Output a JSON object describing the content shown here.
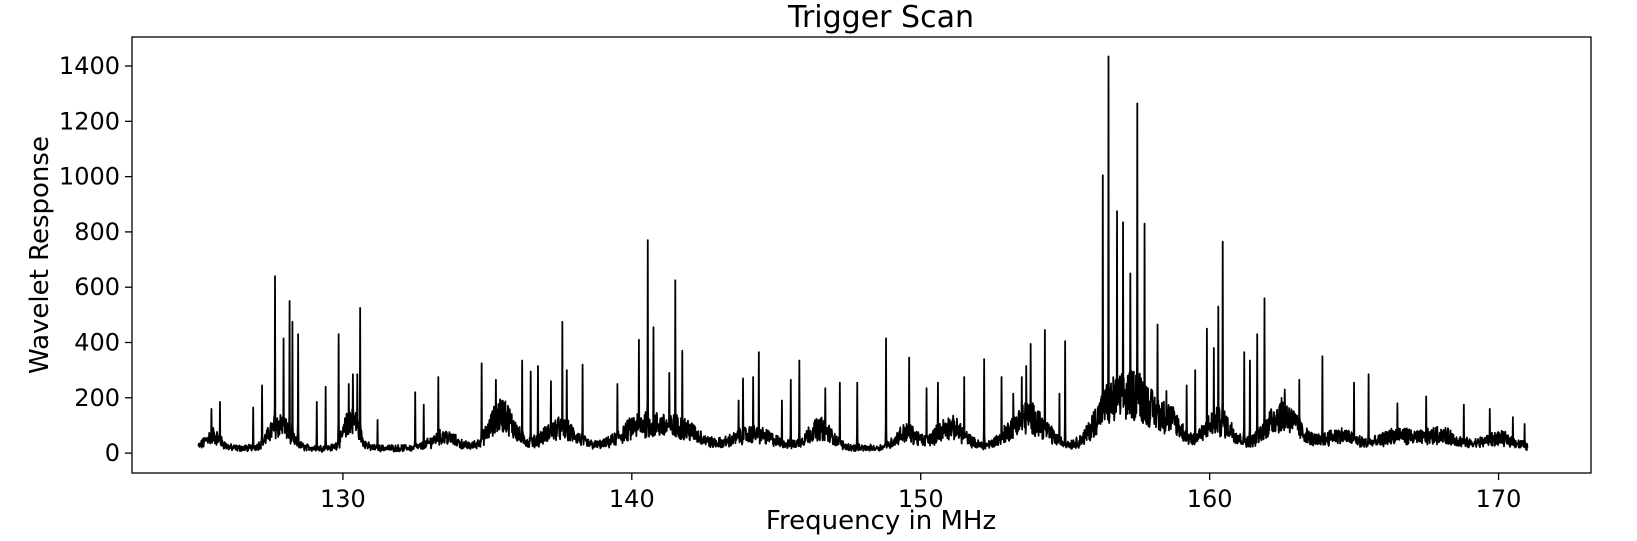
{
  "chart_data": {
    "type": "line",
    "title": "Trigger Scan",
    "xlabel": "Frequency in MHz",
    "ylabel": "Wavelet Response",
    "xlim": [
      122.7,
      173.2
    ],
    "ylim": [
      -72,
      1505
    ],
    "x_ticks": [
      130,
      140,
      150,
      160,
      170
    ],
    "y_ticks": [
      0,
      200,
      400,
      600,
      800,
      1000,
      1200,
      1400
    ],
    "x_tick_labels": [
      "130",
      "140",
      "150",
      "160",
      "170"
    ],
    "y_tick_labels": [
      "0",
      "200",
      "400",
      "600",
      "800",
      "1000",
      "1200",
      "1400"
    ],
    "grid": false,
    "legend": "none",
    "line_color": "#000000",
    "series": [
      {
        "x_range": [
          125.0,
          171.0
        ],
        "baseline_bumps": [
          [
            125.5,
            45,
            0.35
          ],
          [
            127.8,
            85,
            0.5
          ],
          [
            130.3,
            105,
            0.35
          ],
          [
            133.5,
            40,
            0.6
          ],
          [
            135.5,
            120,
            0.6
          ],
          [
            137.5,
            70,
            0.8
          ],
          [
            140.4,
            85,
            1.0
          ],
          [
            141.8,
            60,
            0.8
          ],
          [
            144.2,
            50,
            1.0
          ],
          [
            146.5,
            70,
            0.6
          ],
          [
            149.5,
            55,
            0.5
          ],
          [
            151.0,
            75,
            0.7
          ],
          [
            153.7,
            110,
            0.9
          ],
          [
            156.6,
            160,
            0.8
          ],
          [
            157.6,
            150,
            0.6
          ],
          [
            158.6,
            100,
            0.6
          ],
          [
            160.3,
            95,
            0.7
          ],
          [
            162.5,
            120,
            0.8
          ],
          [
            164.5,
            45,
            0.8
          ],
          [
            166.5,
            45,
            0.8
          ],
          [
            168.0,
            45,
            0.8
          ],
          [
            170.0,
            35,
            0.8
          ]
        ],
        "peaks": [
          [
            125.45,
            160
          ],
          [
            125.75,
            185
          ],
          [
            126.9,
            165
          ],
          [
            127.2,
            245
          ],
          [
            127.65,
            640
          ],
          [
            127.95,
            415
          ],
          [
            128.15,
            550
          ],
          [
            128.25,
            475
          ],
          [
            128.45,
            430
          ],
          [
            129.1,
            185
          ],
          [
            129.4,
            240
          ],
          [
            129.85,
            430
          ],
          [
            130.2,
            250
          ],
          [
            130.35,
            285
          ],
          [
            130.5,
            285
          ],
          [
            130.6,
            525
          ],
          [
            131.2,
            120
          ],
          [
            132.5,
            220
          ],
          [
            132.8,
            175
          ],
          [
            133.3,
            275
          ],
          [
            134.8,
            325
          ],
          [
            135.3,
            265
          ],
          [
            136.2,
            335
          ],
          [
            136.5,
            295
          ],
          [
            136.75,
            315
          ],
          [
            137.2,
            260
          ],
          [
            137.6,
            475
          ],
          [
            137.75,
            300
          ],
          [
            138.3,
            320
          ],
          [
            139.5,
            250
          ],
          [
            140.25,
            410
          ],
          [
            140.55,
            770
          ],
          [
            140.75,
            455
          ],
          [
            141.3,
            290
          ],
          [
            141.5,
            625
          ],
          [
            141.75,
            370
          ],
          [
            143.7,
            190
          ],
          [
            143.85,
            270
          ],
          [
            144.2,
            275
          ],
          [
            144.4,
            365
          ],
          [
            145.2,
            190
          ],
          [
            145.5,
            265
          ],
          [
            145.8,
            335
          ],
          [
            146.7,
            235
          ],
          [
            147.2,
            255
          ],
          [
            147.8,
            255
          ],
          [
            148.8,
            415
          ],
          [
            149.6,
            345
          ],
          [
            150.2,
            235
          ],
          [
            150.6,
            255
          ],
          [
            151.5,
            275
          ],
          [
            152.2,
            340
          ],
          [
            152.8,
            275
          ],
          [
            153.2,
            215
          ],
          [
            153.5,
            275
          ],
          [
            153.65,
            315
          ],
          [
            153.8,
            395
          ],
          [
            154.3,
            445
          ],
          [
            154.8,
            215
          ],
          [
            155.0,
            405
          ],
          [
            156.3,
            1005
          ],
          [
            156.5,
            1435
          ],
          [
            156.8,
            875
          ],
          [
            157.0,
            835
          ],
          [
            157.25,
            650
          ],
          [
            157.5,
            1265
          ],
          [
            157.75,
            830
          ],
          [
            158.2,
            465
          ],
          [
            158.5,
            225
          ],
          [
            159.2,
            245
          ],
          [
            159.5,
            300
          ],
          [
            159.9,
            450
          ],
          [
            160.15,
            380
          ],
          [
            160.3,
            530
          ],
          [
            160.45,
            765
          ],
          [
            161.2,
            365
          ],
          [
            161.4,
            335
          ],
          [
            161.65,
            430
          ],
          [
            161.9,
            560
          ],
          [
            162.6,
            230
          ],
          [
            163.1,
            265
          ],
          [
            163.9,
            350
          ],
          [
            165.0,
            255
          ],
          [
            165.5,
            285
          ],
          [
            166.5,
            180
          ],
          [
            167.5,
            205
          ],
          [
            168.8,
            175
          ],
          [
            169.7,
            160
          ],
          [
            170.5,
            130
          ],
          [
            170.9,
            105
          ]
        ]
      }
    ]
  }
}
